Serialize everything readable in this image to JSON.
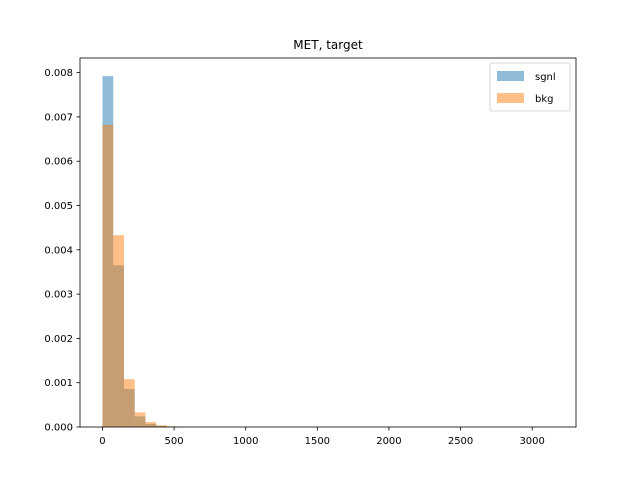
{
  "chart_data": {
    "type": "bar",
    "title": "MET, target",
    "xlabel": "",
    "ylabel": "",
    "xlim": [
      -157,
      3306
    ],
    "ylim": [
      0,
      0.00833
    ],
    "xticks": [
      0,
      500,
      1000,
      1500,
      2000,
      2500,
      3000
    ],
    "xtick_labels": [
      "0",
      "500",
      "1000",
      "1500",
      "2000",
      "2500",
      "3000"
    ],
    "yticks": [
      0,
      0.001,
      0.002,
      0.003,
      0.004,
      0.005,
      0.006,
      0.007,
      0.008
    ],
    "ytick_labels": [
      "0.000",
      "0.001",
      "0.002",
      "0.003",
      "0.004",
      "0.005",
      "0.006",
      "0.007",
      "0.008"
    ],
    "bin_edges": [
      0,
      75,
      150,
      225,
      300,
      375,
      450,
      525
    ],
    "grid": false,
    "legend_position": "top-right",
    "series": [
      {
        "name": "sgnl",
        "color": "#1f77b4",
        "alpha": 0.5,
        "values": [
          0.00792,
          0.00365,
          0.00086,
          0.00024,
          7e-05,
          2e-05,
          5e-06
        ]
      },
      {
        "name": "bkg",
        "color": "#ff7f0e",
        "alpha": 0.5,
        "values": [
          0.00682,
          0.00433,
          0.00108,
          0.00033,
          0.00011,
          4e-05,
          1.5e-05
        ]
      }
    ]
  }
}
